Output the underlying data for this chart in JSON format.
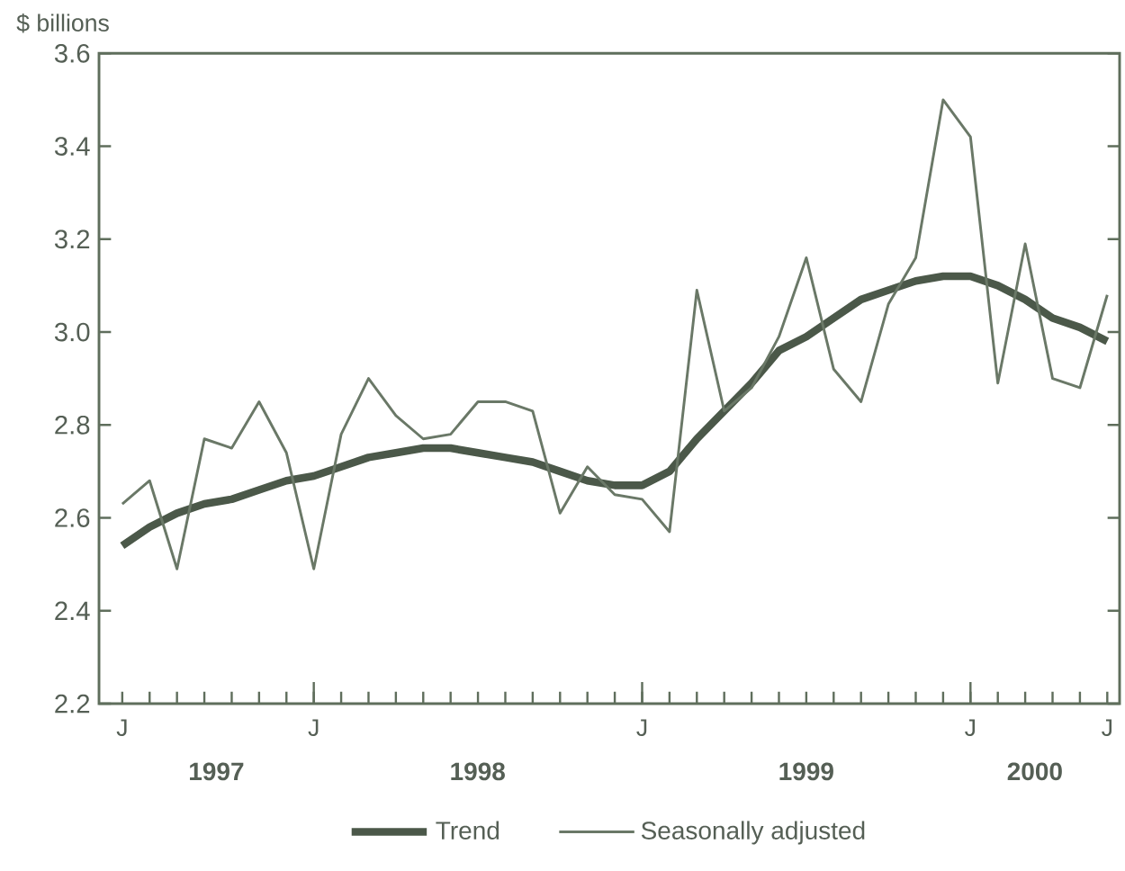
{
  "chart_data": {
    "type": "line",
    "ylabel": "$ billions",
    "categories": [
      "J",
      null,
      null,
      null,
      null,
      null,
      null,
      "J",
      null,
      null,
      null,
      null,
      null,
      null,
      null,
      null,
      null,
      null,
      null,
      "J",
      null,
      null,
      null,
      null,
      null,
      null,
      null,
      null,
      null,
      null,
      null,
      "J",
      null,
      null,
      null,
      null,
      "J"
    ],
    "series": [
      {
        "name": "Trend",
        "color": "#4b5849",
        "values": [
          2.54,
          2.58,
          2.61,
          2.63,
          2.64,
          2.66,
          2.68,
          2.69,
          2.71,
          2.73,
          2.74,
          2.75,
          2.75,
          2.74,
          2.73,
          2.72,
          2.7,
          2.68,
          2.67,
          2.67,
          2.7,
          2.77,
          2.83,
          2.89,
          2.96,
          2.99,
          3.03,
          3.07,
          3.09,
          3.11,
          3.12,
          3.12,
          3.1,
          3.07,
          3.03,
          3.01,
          2.98
        ]
      },
      {
        "name": "Seasonally adjusted",
        "color": "#6a7867",
        "values": [
          2.63,
          2.68,
          2.49,
          2.77,
          2.75,
          2.85,
          2.74,
          2.49,
          2.78,
          2.9,
          2.82,
          2.77,
          2.78,
          2.85,
          2.85,
          2.83,
          2.61,
          2.71,
          2.65,
          2.64,
          2.57,
          3.09,
          2.83,
          2.88,
          2.99,
          3.16,
          2.92,
          2.85,
          3.06,
          3.16,
          3.5,
          3.42,
          2.89,
          3.19,
          2.9,
          2.88,
          3.08
        ]
      }
    ],
    "ylim": [
      2.2,
      3.6
    ],
    "yticks": [
      2.2,
      2.4,
      2.6,
      2.8,
      {
        "value": 3,
        "label": "3.0"
      },
      3.2,
      3.4,
      3.6
    ],
    "annotations": [
      "1997",
      "1998",
      "1999",
      "2000"
    ],
    "grid": false,
    "legend": "bottom",
    "marker": "none",
    "line_style": "solid"
  }
}
